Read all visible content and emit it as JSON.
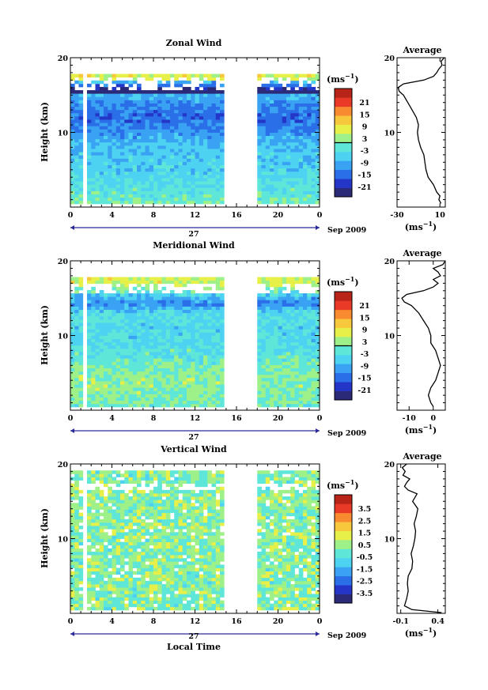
{
  "figure": {
    "xlabel": "Local Time",
    "date_label": "Sep 2009",
    "day_label": "27",
    "average_title": "Average",
    "units": "(ms",
    "units_sup": "−1",
    "units_close": ")"
  },
  "chart_data": [
    {
      "id": "zonal",
      "type": "heatmap",
      "title": "Zonal Wind",
      "ylabel": "Height (km)",
      "xlim": [
        0,
        24
      ],
      "ylim": [
        0,
        20
      ],
      "x_ticks": [
        "0",
        "4",
        "8",
        "12",
        "16",
        "20",
        "0"
      ],
      "y_ticks": [
        "10",
        "20"
      ],
      "missing_data_x": [
        [
          14.9,
          18.2
        ]
      ],
      "colorbar": {
        "ticks": [
          "21",
          "15",
          "9",
          "3",
          "-3",
          "-9",
          "-15",
          "-21"
        ],
        "range": [
          -24,
          24
        ],
        "zero_line": 0
      },
      "profile": {
        "type": "line",
        "title": "Average",
        "xlim": [
          -30,
          15
        ],
        "x_ticks": [
          "-30",
          "10"
        ],
        "y_ticks": [
          "10",
          "20"
        ],
        "xunit": "(ms",
        "height_km": [
          0.5,
          1,
          1.5,
          2,
          3,
          4,
          5,
          6,
          7,
          8,
          9,
          10,
          11,
          12,
          13,
          14,
          15,
          15.5,
          16,
          16.5,
          17,
          17.5,
          18,
          18.5,
          19,
          19.5,
          20
        ],
        "value": [
          11,
          9,
          10,
          7,
          4,
          -1,
          -3,
          -4,
          -5,
          -8,
          -10,
          -11,
          -10,
          -12,
          -16,
          -20,
          -24,
          -28,
          -29,
          -24,
          -5,
          4,
          7,
          9,
          12,
          11,
          14
        ]
      }
    },
    {
      "id": "meridional",
      "type": "heatmap",
      "title": "Meridional Wind",
      "ylabel": "Height (km)",
      "xlim": [
        0,
        24
      ],
      "ylim": [
        0,
        20
      ],
      "x_ticks": [
        "0",
        "4",
        "8",
        "12",
        "16",
        "20",
        "0"
      ],
      "y_ticks": [
        "10",
        "20"
      ],
      "missing_data_x": [
        [
          14.9,
          18.2
        ]
      ],
      "colorbar": {
        "ticks": [
          "21",
          "15",
          "9",
          "3",
          "-3",
          "-9",
          "-15",
          "-21"
        ],
        "range": [
          -24,
          24
        ],
        "zero_line": 0
      },
      "profile": {
        "type": "line",
        "title": "Average",
        "xlim": [
          -15,
          5
        ],
        "x_ticks": [
          "-10",
          "0"
        ],
        "y_ticks": [
          "10",
          "20"
        ],
        "xunit": "(ms",
        "height_km": [
          0.5,
          1,
          2,
          3,
          4,
          5,
          6,
          7,
          8,
          9,
          10,
          11,
          12,
          13,
          14,
          14.5,
          15,
          15.5,
          16,
          16.5,
          17,
          17.5,
          18,
          18.5,
          19,
          19.5,
          20
        ],
        "value": [
          0,
          -1,
          -2,
          -1,
          1,
          2,
          3,
          2,
          1,
          -1,
          -1,
          -2,
          -4,
          -6,
          -9,
          -12,
          -13,
          -11,
          -4,
          0,
          2,
          0,
          3,
          2,
          0,
          4,
          5
        ]
      }
    },
    {
      "id": "vertical",
      "type": "heatmap",
      "title": "Vertical Wind",
      "ylabel": "Height (km)",
      "xlim": [
        0,
        24
      ],
      "ylim": [
        0,
        20
      ],
      "x_ticks": [
        "0",
        "4",
        "8",
        "12",
        "16",
        "20",
        "0"
      ],
      "y_ticks": [
        "10",
        "20"
      ],
      "missing_data_x": [
        [
          14.9,
          18.2
        ]
      ],
      "colorbar": {
        "ticks": [
          "3.5",
          "2.5",
          "1.5",
          "0.5",
          "-0.5",
          "-1.5",
          "-2.5",
          "-3.5"
        ],
        "range": [
          -4,
          4
        ]
      },
      "profile": {
        "type": "line",
        "title": "Average",
        "xlim": [
          -0.15,
          0.5
        ],
        "x_ticks": [
          "-0.1",
          "0.4"
        ],
        "y_ticks": [
          "10",
          "20"
        ],
        "xunit": "(ms",
        "height_km": [
          0.1,
          0.5,
          1,
          2,
          3,
          4,
          5,
          6,
          7,
          8,
          9,
          10,
          11,
          12,
          13,
          14,
          15,
          16,
          16.5,
          17,
          17.5,
          18,
          18.5,
          19,
          19.5,
          20
        ],
        "value": [
          0.45,
          0.05,
          -0.05,
          -0.02,
          0.0,
          -0.01,
          0.0,
          0.05,
          0.06,
          0.04,
          0.07,
          0.09,
          0.1,
          0.08,
          0.11,
          0.13,
          0.06,
          0.12,
          0.0,
          -0.05,
          -0.02,
          0.02,
          -0.07,
          -0.04,
          -0.08,
          -0.02
        ]
      }
    }
  ]
}
